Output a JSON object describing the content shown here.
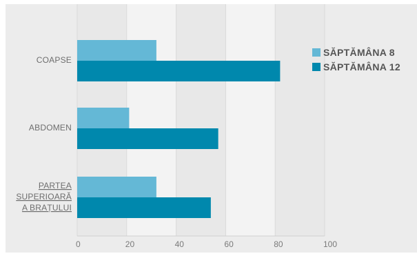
{
  "chart_data": {
    "type": "bar",
    "orientation": "horizontal",
    "categories": [
      [
        "COAPSE"
      ],
      [
        "ABDOMEN"
      ],
      [
        "PARTEA",
        "SUPERIOARĂ",
        "A BRAȚULUI"
      ]
    ],
    "series": [
      {
        "name": "SĂPTĂMÂNA 8",
        "values": [
          32,
          21,
          32
        ],
        "color": "#64b8d6"
      },
      {
        "name": "SĂPTĂMÂNA 12",
        "values": [
          82,
          57,
          54
        ],
        "color": "#0088ad"
      }
    ],
    "xlim": [
      0,
      100
    ],
    "xticks": [
      0,
      20,
      40,
      60,
      80,
      100
    ],
    "title": "",
    "xlabel": "",
    "ylabel": "",
    "grid": true,
    "legend_position": "top-right"
  }
}
